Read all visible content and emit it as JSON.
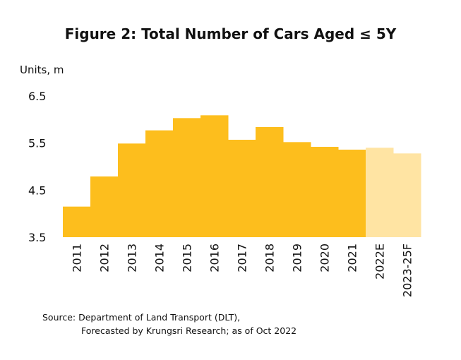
{
  "chart_data": {
    "type": "bar",
    "title": "Figure 2: Total Number of Cars Aged ≤ 5Y",
    "ylabel": "Units, m",
    "ylim": [
      3.5,
      6.5
    ],
    "yticks": [
      "3.5",
      "4.5",
      "5.5",
      "6.5"
    ],
    "categories": [
      "2011",
      "2012",
      "2013",
      "2014",
      "2015",
      "2016",
      "2017",
      "2018",
      "2019",
      "2020",
      "2021",
      "2022E",
      "2023-25F"
    ],
    "values": [
      4.15,
      4.79,
      5.49,
      5.77,
      6.03,
      6.09,
      5.57,
      5.84,
      5.52,
      5.42,
      5.36,
      5.4,
      5.28
    ],
    "forecast_from_index": 11,
    "colors": {
      "actual": "#FDBE1D",
      "forecast": "#FFE4A3"
    },
    "grid": false,
    "legend": "none"
  },
  "source": {
    "line1": "Source: Department of Land Transport (DLT),",
    "line2": "Forecasted by Krungsri Research; as of Oct 2022"
  }
}
